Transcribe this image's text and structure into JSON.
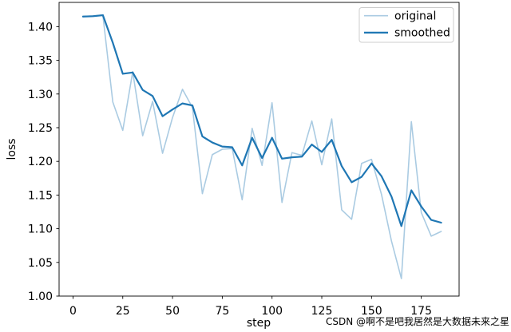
{
  "figure": {
    "background": "#ffffff",
    "watermark_text": "CSDN @啊不是吧我居然是大数据未来之星",
    "watermark_color": "#cbc8c2"
  },
  "chart_data": {
    "type": "line",
    "title": "",
    "xlabel": "step",
    "ylabel": "loss",
    "grid": false,
    "legend_position": "upper right",
    "xlim": [
      -7,
      194
    ],
    "ylim": [
      1.0,
      1.436
    ],
    "x_ticks": [
      "0",
      "25",
      "50",
      "75",
      "100",
      "125",
      "150",
      "175"
    ],
    "y_ticks": [
      "1.00",
      "1.05",
      "1.10",
      "1.15",
      "1.20",
      "1.25",
      "1.30",
      "1.35",
      "1.40"
    ],
    "x": [
      5,
      10,
      15,
      20,
      25,
      30,
      35,
      40,
      45,
      50,
      55,
      60,
      65,
      70,
      75,
      80,
      85,
      90,
      95,
      100,
      105,
      110,
      115,
      120,
      125,
      130,
      135,
      140,
      145,
      150,
      155,
      160,
      165,
      170,
      175,
      180,
      185
    ],
    "series": [
      {
        "name": "original",
        "color": "#aacbe2",
        "line_width": 1.6,
        "values": [
          1.415,
          1.416,
          1.417,
          1.288,
          1.246,
          1.333,
          1.238,
          1.289,
          1.212,
          1.265,
          1.307,
          1.28,
          1.152,
          1.21,
          1.218,
          1.219,
          1.143,
          1.249,
          1.194,
          1.287,
          1.139,
          1.213,
          1.209,
          1.26,
          1.195,
          1.263,
          1.128,
          1.114,
          1.197,
          1.203,
          1.151,
          1.082,
          1.026,
          1.259,
          1.124,
          1.089,
          1.096
        ]
      },
      {
        "name": "smoothed",
        "color": "#1f77b4",
        "line_width": 2.2,
        "values": [
          1.415,
          1.4155,
          1.417,
          1.376,
          1.33,
          1.332,
          1.306,
          1.297,
          1.267,
          1.277,
          1.286,
          1.283,
          1.237,
          1.228,
          1.222,
          1.221,
          1.194,
          1.235,
          1.205,
          1.235,
          1.204,
          1.206,
          1.207,
          1.225,
          1.214,
          1.232,
          1.193,
          1.169,
          1.177,
          1.197,
          1.178,
          1.148,
          1.104,
          1.157,
          1.133,
          1.113,
          1.109
        ]
      }
    ]
  }
}
